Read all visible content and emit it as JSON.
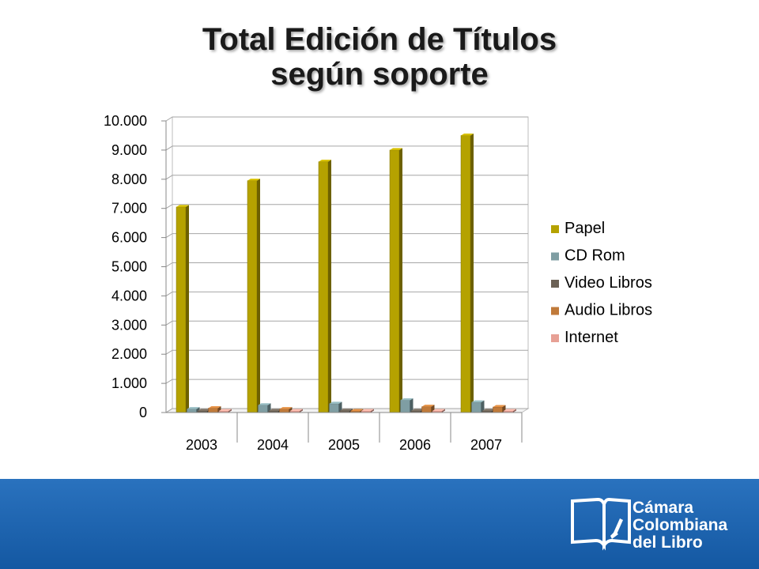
{
  "title": {
    "line1": "Total Edición de Títulos",
    "line2": "según soporte"
  },
  "chart_data": {
    "type": "bar",
    "title": "Total Edición de Títulos según soporte",
    "categories": [
      "2003",
      "2004",
      "2005",
      "2006",
      "2007"
    ],
    "series": [
      {
        "name": "Papel",
        "color": "#b5a200",
        "values": [
          7050,
          7950,
          8600,
          9000,
          9500
        ]
      },
      {
        "name": "CD Rom",
        "color": "#7f9ea3",
        "values": [
          120,
          250,
          300,
          420,
          350
        ]
      },
      {
        "name": "Video Libros",
        "color": "#6b6155",
        "values": [
          20,
          20,
          60,
          30,
          30
        ]
      },
      {
        "name": "Audio Libros",
        "color": "#c07a3a",
        "values": [
          150,
          120,
          40,
          200,
          190
        ]
      },
      {
        "name": "Internet",
        "color": "#e7a095",
        "values": [
          20,
          20,
          20,
          20,
          20
        ]
      }
    ],
    "ylim": [
      0,
      10000
    ],
    "yticks": [
      "0",
      "1.000",
      "2.000",
      "3.000",
      "4.000",
      "5.000",
      "6.000",
      "7.000",
      "8.000",
      "9.000",
      "10.000"
    ],
    "grid": true,
    "legend_position": "right"
  },
  "footer": {
    "brand_line1": "Cámara",
    "brand_line2": "Colombiana",
    "brand_line3": "del Libro",
    "background": "#1a5fa8"
  }
}
